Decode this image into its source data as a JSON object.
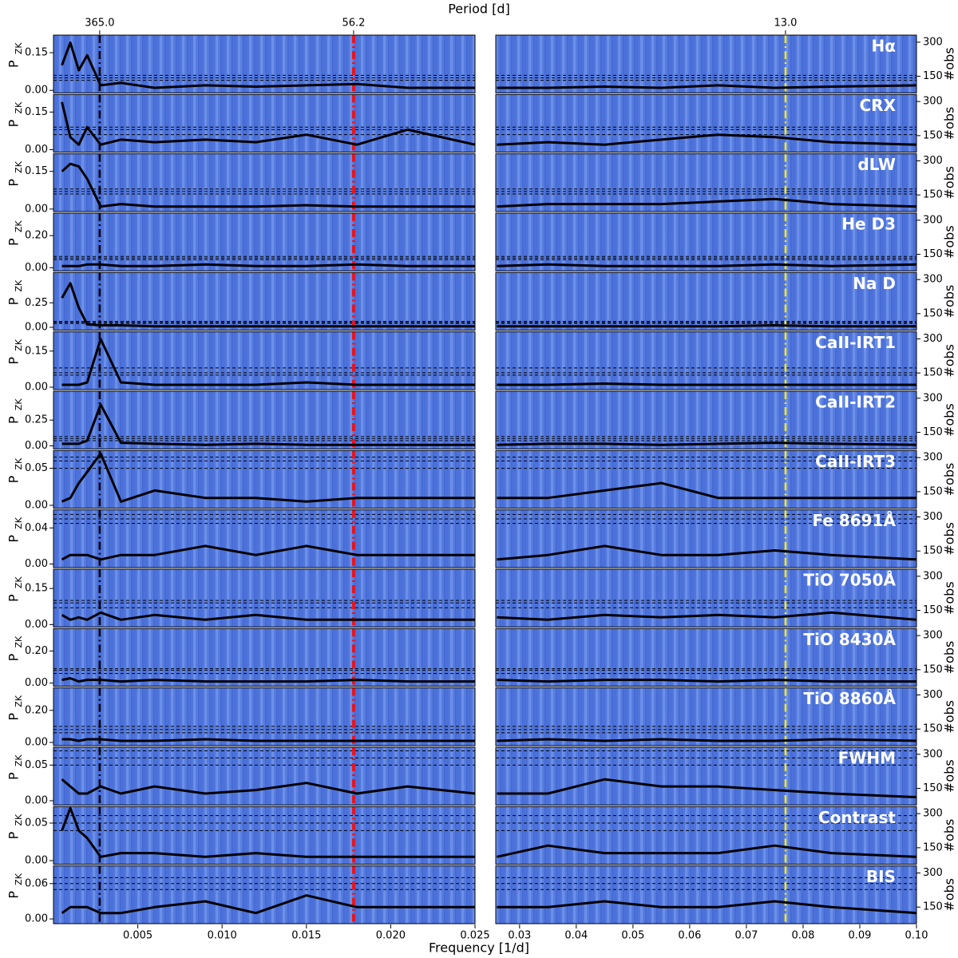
{
  "chart_data": {
    "type": "line",
    "title": "Period [d]",
    "xlabel": "Frequency [1/d]",
    "ylabel": "P",
    "ylabel_sub": "ZK",
    "y2label": "#obs",
    "xlim_left": [
      0,
      0.025
    ],
    "xticks_left": [
      0.005,
      {
        "value": 0.01,
        "label": "0.010"
      },
      0.015,
      {
        "value": 0.02,
        "label": "0.020"
      },
      0.025
    ],
    "xlim_right": [
      0.0258,
      0.1
    ],
    "xticks_right": [
      0.03,
      0.04,
      0.05,
      0.06,
      0.07,
      0.08,
      0.09,
      {
        "value": 0.1,
        "label": "0.10"
      }
    ],
    "x_left": [
      0.0005,
      0.001,
      0.0015,
      0.002,
      0.0028,
      0.004,
      0.006,
      0.009,
      0.012,
      0.015,
      0.018,
      0.021,
      0.025
    ],
    "x_right": [
      0.026,
      0.035,
      0.045,
      0.055,
      0.065,
      0.075,
      0.085,
      0.1
    ],
    "y2lim": [
      77,
      331
    ],
    "y2ticks": [
      150,
      300
    ],
    "period_lines": [
      {
        "label": "365.0",
        "x": 0.00274,
        "color": "#000000"
      },
      {
        "label": "56.2",
        "x": 0.0178,
        "color": "#e8141e"
      },
      {
        "label": "13.0",
        "x": 0.0769,
        "color": "#f5e61e"
      }
    ],
    "panels": [
      {
        "name": "Hα",
        "ylim": [
          -0.01,
          0.22
        ],
        "yticks": [
          {
            "value": 0,
            "label": "0.00"
          },
          0.15
        ],
        "fap": [
          0.04,
          0.05,
          0.06
        ],
        "left": [
          0.1,
          0.19,
          0.08,
          0.14,
          0.02,
          0.03,
          0.01,
          0.02,
          0.015,
          0.02,
          0.025,
          0.01,
          0.01
        ],
        "right": [
          0.01,
          0.01,
          0.015,
          0.01,
          0.02,
          0.01,
          0.015,
          0.02
        ]
      },
      {
        "name": "CRX",
        "ylim": [
          -0.01,
          0.22
        ],
        "yticks": [
          {
            "value": 0,
            "label": "0.00"
          },
          0.15
        ],
        "fap": [
          0.06,
          0.08,
          0.09
        ],
        "left": [
          0.19,
          0.05,
          0.02,
          0.09,
          0.02,
          0.04,
          0.03,
          0.04,
          0.03,
          0.06,
          0.02,
          0.08,
          0.02
        ],
        "right": [
          0.02,
          0.03,
          0.02,
          0.04,
          0.06,
          0.05,
          0.03,
          0.02
        ]
      },
      {
        "name": "dLW",
        "ylim": [
          -0.01,
          0.22
        ],
        "yticks": [
          {
            "value": 0,
            "label": "0.00"
          },
          0.15
        ],
        "fap": [
          0.06,
          0.07,
          0.08
        ],
        "left": [
          0.15,
          0.18,
          0.17,
          0.12,
          0.01,
          0.02,
          0.01,
          0.01,
          0.01,
          0.015,
          0.01,
          0.01,
          0.01
        ],
        "right": [
          0.01,
          0.02,
          0.02,
          0.02,
          0.03,
          0.04,
          0.02,
          0.01
        ]
      },
      {
        "name": "He D3",
        "ylim": [
          -0.02,
          0.34
        ],
        "yticks": [
          {
            "value": 0,
            "label": "0.00"
          },
          {
            "value": 0.2,
            "label": "0.20"
          }
        ],
        "fap": [
          0.05,
          0.06,
          0.07
        ],
        "left": [
          0.01,
          0.01,
          0.01,
          0.02,
          0.02,
          0.01,
          0.01,
          0.02,
          0.01,
          0.01,
          0.02,
          0.01,
          0.01
        ],
        "right": [
          0.01,
          0.02,
          0.01,
          0.01,
          0.01,
          0.02,
          0.01,
          0.02
        ]
      },
      {
        "name": "Na D",
        "ylim": [
          -0.03,
          0.56
        ],
        "yticks": [
          {
            "value": 0,
            "label": "0.00"
          },
          0.25
        ],
        "fap": [
          0.04,
          0.05,
          0.06
        ],
        "left": [
          0.3,
          0.45,
          0.2,
          0.03,
          0.02,
          0.02,
          0.01,
          0.01,
          0.01,
          0.01,
          0.01,
          0.01,
          0.01
        ],
        "right": [
          0.01,
          0.01,
          0.01,
          0.01,
          0.01,
          0.02,
          0.01,
          0.01
        ]
      },
      {
        "name": "CaII-IRT1",
        "ylim": [
          -0.01,
          0.23
        ],
        "yticks": [
          {
            "value": 0,
            "label": "0.00"
          },
          0.15
        ],
        "fap": [
          0.05,
          0.06,
          0.08
        ],
        "left": [
          0.01,
          0.01,
          0.01,
          0.02,
          0.2,
          0.02,
          0.01,
          0.01,
          0.01,
          0.02,
          0.01,
          0.01,
          0.01
        ],
        "right": [
          0.01,
          0.01,
          0.015,
          0.01,
          0.01,
          0.01,
          0.01,
          0.01
        ]
      },
      {
        "name": "CaII-IRT2",
        "ylim": [
          -0.03,
          0.53
        ],
        "yticks": [
          {
            "value": 0,
            "label": "0.00"
          },
          0.25
        ],
        "fap": [
          0.05,
          0.07,
          0.09
        ],
        "left": [
          0.02,
          0.02,
          0.02,
          0.05,
          0.4,
          0.03,
          0.02,
          0.01,
          0.02,
          0.01,
          0.01,
          0.01,
          0.01
        ],
        "right": [
          0.01,
          0.02,
          0.02,
          0.01,
          0.02,
          0.03,
          0.02,
          0.01
        ]
      },
      {
        "name": "CaII-IRT3",
        "ylim": [
          -0.004,
          0.074
        ],
        "yticks": [
          {
            "value": 0,
            "label": "0.00"
          },
          0.05
        ],
        "fap": [
          0.05,
          0.06,
          0.065
        ],
        "left": [
          0.005,
          0.01,
          0.03,
          0.045,
          0.07,
          0.005,
          0.02,
          0.01,
          0.01,
          0.005,
          0.01,
          0.01,
          0.01
        ],
        "right": [
          0.01,
          0.01,
          0.02,
          0.03,
          0.01,
          0.01,
          0.01,
          0.01
        ]
      },
      {
        "name": "Fe 8691Å",
        "ylim": [
          -0.004,
          0.06
        ],
        "yticks": [
          {
            "value": 0,
            "label": "0.00"
          },
          0.04
        ],
        "fap": [
          0.045,
          0.05,
          0.055
        ],
        "left": [
          0.005,
          0.01,
          0.01,
          0.01,
          0.005,
          0.01,
          0.01,
          0.02,
          0.01,
          0.02,
          0.01,
          0.01,
          0.01
        ],
        "right": [
          0.005,
          0.01,
          0.02,
          0.01,
          0.01,
          0.015,
          0.01,
          0.005
        ]
      },
      {
        "name": "TiO 7050Å",
        "ylim": [
          -0.01,
          0.23
        ],
        "yticks": [
          {
            "value": 0,
            "label": "0.00"
          },
          0.15
        ],
        "fap": [
          0.07,
          0.09,
          0.1
        ],
        "left": [
          0.04,
          0.02,
          0.03,
          0.02,
          0.05,
          0.02,
          0.04,
          0.02,
          0.04,
          0.02,
          0.02,
          0.02,
          0.02
        ],
        "right": [
          0.03,
          0.02,
          0.04,
          0.03,
          0.04,
          0.03,
          0.05,
          0.02
        ]
      },
      {
        "name": "TiO 8430Å",
        "ylim": [
          -0.02,
          0.34
        ],
        "yticks": [
          {
            "value": 0,
            "label": "0.00"
          },
          {
            "value": 0.2,
            "label": "0.20"
          }
        ],
        "fap": [
          0.06,
          0.08,
          0.09
        ],
        "left": [
          0.02,
          0.03,
          0.01,
          0.02,
          0.02,
          0.01,
          0.02,
          0.01,
          0.01,
          0.01,
          0.02,
          0.01,
          0.01
        ],
        "right": [
          0.02,
          0.01,
          0.02,
          0.02,
          0.01,
          0.02,
          0.01,
          0.01
        ]
      },
      {
        "name": "TiO 8860Å",
        "ylim": [
          -0.02,
          0.34
        ],
        "yticks": [
          {
            "value": 0,
            "label": "0.00"
          },
          {
            "value": 0.2,
            "label": "0.20"
          }
        ],
        "fap": [
          0.06,
          0.08,
          0.1
        ],
        "left": [
          0.02,
          0.02,
          0.01,
          0.02,
          0.02,
          0.01,
          0.01,
          0.02,
          0.01,
          0.01,
          0.01,
          0.01,
          0.01
        ],
        "right": [
          0.01,
          0.02,
          0.01,
          0.02,
          0.01,
          0.01,
          0.02,
          0.01
        ]
      },
      {
        "name": "FWHM",
        "ylim": [
          -0.006,
          0.075
        ],
        "yticks": [
          {
            "value": 0,
            "label": "0.00"
          },
          0.05
        ],
        "fap": [
          0.05,
          0.06,
          0.07
        ],
        "left": [
          0.03,
          0.02,
          0.01,
          0.01,
          0.02,
          0.01,
          0.02,
          0.01,
          0.015,
          0.025,
          0.01,
          0.02,
          0.01
        ],
        "right": [
          0.01,
          0.01,
          0.03,
          0.02,
          0.02,
          0.015,
          0.01,
          0.005
        ]
      },
      {
        "name": "Contrast",
        "ylim": [
          -0.005,
          0.072
        ],
        "yticks": [
          {
            "value": 0,
            "label": "0.00"
          },
          0.05
        ],
        "fap": [
          0.04,
          0.05,
          0.06
        ],
        "left": [
          0.04,
          0.07,
          0.04,
          0.03,
          0.005,
          0.01,
          0.01,
          0.005,
          0.01,
          0.005,
          0.005,
          0.005,
          0.005
        ],
        "right": [
          0.005,
          0.02,
          0.01,
          0.01,
          0.01,
          0.02,
          0.01,
          0.005
        ]
      },
      {
        "name": "BIS",
        "ylim": [
          -0.008,
          0.09
        ],
        "yticks": [
          {
            "value": 0,
            "label": "0.00"
          },
          0.06
        ],
        "fap": [
          0.05,
          0.06,
          0.07
        ],
        "left": [
          0.01,
          0.02,
          0.02,
          0.02,
          0.01,
          0.01,
          0.02,
          0.03,
          0.01,
          0.04,
          0.02,
          0.02,
          0.02
        ],
        "right": [
          0.02,
          0.02,
          0.03,
          0.02,
          0.02,
          0.03,
          0.02,
          0.01
        ]
      }
    ]
  }
}
